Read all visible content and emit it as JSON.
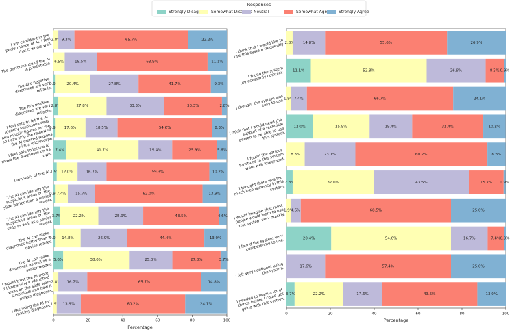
{
  "chart_data": [
    {
      "type": "stacked-bar-horizontal",
      "legend_title": "Responses",
      "legend": "upper center",
      "xlabel": "Percentage",
      "xlim": [
        0,
        100
      ],
      "xticks": [
        0,
        20,
        40,
        60,
        80,
        100
      ],
      "categories": [
        "I am confident in the performance of AI. I feel that it works well.",
        "The performance of the AI is predictable.",
        "The AI's negative diagnoses are very reliable.",
        "The AI's positive diagnoses are very reliable.",
        "I feel safe to let the AI identify suspicious cells and mitotic figures for me so I can skip the review of the AI-marked regions with a microscope.",
        "I feel safe to let the AI make the diagnoses on its own.",
        "I am wary of the AI.",
        "The AI can identify the suspicious areas on the slide better than a novice reader.",
        "The AI can identify the suspicious areas on the slide as well as a senior reader.",
        "The AI can make diagnoses better than a novice reader.",
        "The AI can make diagnoses as well as a senior reader.",
        "I would trust the AI more if I knew why it identified areas on the slide were suspicious and how it makes diagnoses.",
        "I like using the AI for making diagnoses."
      ],
      "series": [
        {
          "name": "Strongly Disagree",
          "color": "#8dd3c7",
          "values": [
            0,
            0,
            0.9,
            2.8,
            0.9,
            7.4,
            1.9,
            0.9,
            3.7,
            0.9,
            5.6,
            0,
            0
          ],
          "value_labels": [
            null,
            null,
            "0.9%",
            "2.8%",
            "0.9%",
            "7.4%",
            "1.9%",
            "0.9%",
            "3.7%",
            "0.9%",
            "5.6%",
            null,
            null
          ]
        },
        {
          "name": "Somewhat Disagree",
          "color": "#ffffb3",
          "values": [
            2.8,
            6.5,
            20.4,
            27.8,
            17.6,
            41.7,
            12.0,
            7.4,
            22.2,
            14.8,
            38.0,
            2.8,
            1.9
          ],
          "value_labels": [
            "2.8%",
            "6.5%",
            "20.4%",
            "27.8%",
            "17.6%",
            "41.7%",
            "12.0%",
            "7.4%",
            "22.2%",
            "14.8%",
            "38.0%",
            "2.8%",
            "1.9%"
          ]
        },
        {
          "name": "Neutral",
          "color": "#bebada",
          "values": [
            9.3,
            18.5,
            27.8,
            33.3,
            18.5,
            19.4,
            16.7,
            15.7,
            25.9,
            26.9,
            25.0,
            16.7,
            13.9
          ],
          "value_labels": [
            "9.3%",
            "18.5%",
            "27.8%",
            "33.3%",
            "18.5%",
            "19.4%",
            "16.7%",
            "15.7%",
            "25.9%",
            "26.9%",
            "25.0%",
            "16.7%",
            "13.9%"
          ]
        },
        {
          "name": "Somewhat Agree",
          "color": "#fb8072",
          "values": [
            65.7,
            63.9,
            41.7,
            33.3,
            54.6,
            25.9,
            59.3,
            62.0,
            43.5,
            44.4,
            27.8,
            65.7,
            60.2
          ],
          "value_labels": [
            "65.7%",
            "63.9%",
            "41.7%",
            "33.3%",
            "54.6%",
            "25.9%",
            "59.3%",
            "62.0%",
            "43.5%",
            "44.4%",
            "27.8%",
            "65.7%",
            "60.2%"
          ]
        },
        {
          "name": "Strongly Agree",
          "color": "#80b1d3",
          "values": [
            22.2,
            11.1,
            9.3,
            2.8,
            8.3,
            5.6,
            10.2,
            13.9,
            4.6,
            13.0,
            3.7,
            14.8,
            24.1
          ],
          "value_labels": [
            "22.2%",
            "11.1%",
            "9.3%",
            "2.8%",
            "8.3%",
            "5.6%",
            "10.2%",
            "13.9%",
            "4.6%",
            "13.0%",
            "3.7%",
            "14.8%",
            "24.1%"
          ]
        }
      ]
    },
    {
      "type": "stacked-bar-horizontal",
      "xlabel": "Percentage",
      "xlim": [
        0,
        100
      ],
      "xticks": [
        0,
        20,
        40,
        60,
        80,
        100
      ],
      "categories": [
        "I think that I would like to use this system frequently.",
        "I found the system unnecessarily complex.",
        "I thought the system was easy to use.",
        "I think that I would need the support of a technical person to be able to use this system.",
        "I found the various functions in this system were well integrated.",
        "I thought there was too much inconsistency in this system.",
        "I would imagine that most people would learn to use this system very quickly.",
        "I found the system very cumbersome to use.",
        "I felt very confident using the system.",
        "I needed to learn a lot of things before I could get going with this system."
      ],
      "series": [
        {
          "values": [
            0,
            11.1,
            0,
            12.0,
            0,
            2.8,
            0,
            20.4,
            0,
            3.7
          ],
          "value_labels": [
            null,
            "11.1%",
            null,
            "12.0%",
            null,
            "2.8%",
            null,
            "20.4%",
            null,
            "3.7%"
          ]
        },
        {
          "values": [
            2.8,
            52.8,
            1.9,
            25.9,
            8.3,
            37.0,
            1.9,
            54.6,
            0,
            22.2
          ],
          "value_labels": [
            "2.8%",
            "52.8%",
            "1.9%",
            "25.9%",
            "8.3%",
            "37.0%",
            "1.9%",
            "54.6%",
            null,
            "22.2%"
          ]
        },
        {
          "values": [
            14.8,
            26.9,
            7.4,
            19.4,
            23.1,
            43.5,
            4.6,
            16.7,
            17.6,
            17.6
          ],
          "value_labels": [
            "14.8%",
            "26.9%",
            "7.4%",
            "19.4%",
            "23.1%",
            "43.5%",
            "4.6%",
            "16.7%",
            "17.6%",
            "17.6%"
          ]
        },
        {
          "values": [
            55.6,
            8.3,
            66.7,
            32.4,
            60.2,
            15.7,
            68.5,
            7.4,
            57.4,
            43.5
          ],
          "value_labels": [
            "55.6%",
            "8.3%",
            "66.7%",
            "32.4%",
            "60.2%",
            "15.7%",
            "68.5%",
            "7.4%",
            "57.4%",
            "43.5%"
          ]
        },
        {
          "values": [
            26.9,
            0.9,
            24.1,
            10.2,
            8.3,
            0.9,
            25.0,
            0.9,
            25.0,
            13.0
          ],
          "value_labels": [
            "26.9%",
            "0.9%",
            "24.1%",
            "10.2%",
            "8.3%",
            "0.9%",
            "25.0%",
            "0.9%",
            "25.0%",
            "13.0%"
          ]
        }
      ]
    }
  ]
}
